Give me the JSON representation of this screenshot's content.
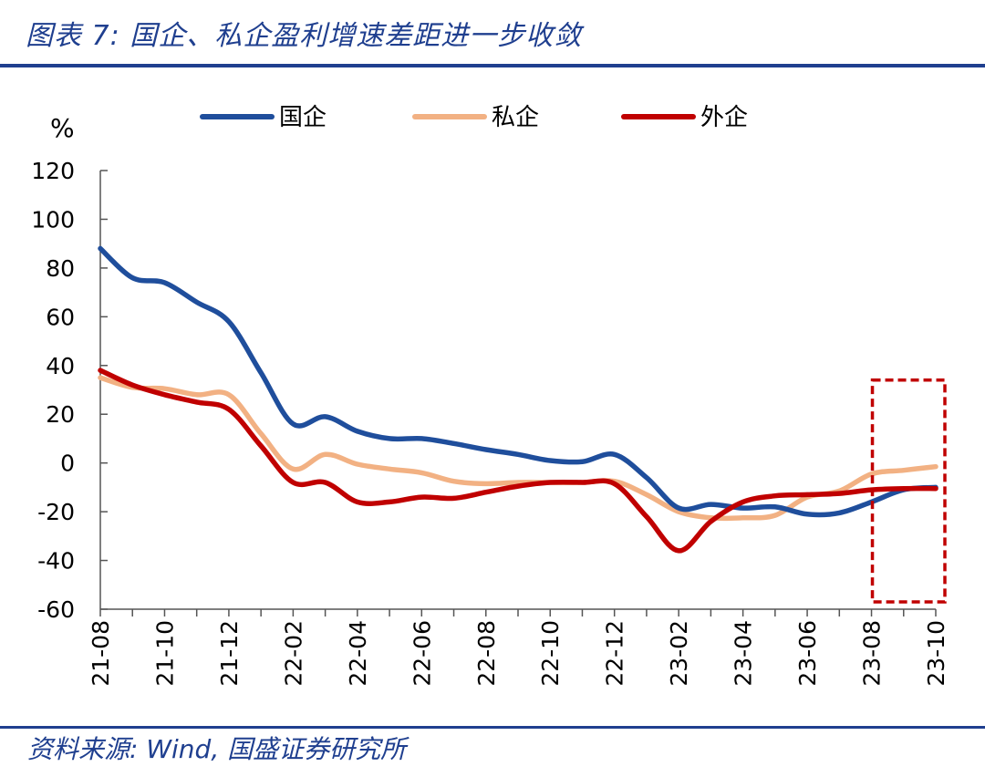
{
  "header": {
    "title": "图表 7: 国企、私企盈利增速差距进一步收敛"
  },
  "footer": {
    "source": "资料来源: Wind, 国盛证券研究所"
  },
  "chart_data": {
    "type": "line",
    "title": "图表 7: 国企、私企盈利增速差距进一步收敛",
    "xlabel": "",
    "ylabel": "%",
    "ylim": [
      -60,
      120
    ],
    "yticks": [
      120,
      100,
      80,
      60,
      40,
      20,
      0,
      -20,
      -40,
      -60
    ],
    "x": [
      "21-08",
      "21-09",
      "21-10",
      "21-11",
      "21-12",
      "22-01",
      "22-02",
      "22-03",
      "22-04",
      "22-05",
      "22-06",
      "22-07",
      "22-08",
      "22-09",
      "22-10",
      "22-11",
      "22-12",
      "23-01",
      "23-02",
      "23-03",
      "23-04",
      "23-05",
      "23-06",
      "23-07",
      "23-08",
      "23-09",
      "23-10"
    ],
    "xtick_labels": [
      "21-08",
      "21-10",
      "21-12",
      "22-02",
      "22-04",
      "22-06",
      "22-08",
      "22-10",
      "22-12",
      "23-02",
      "23-04",
      "23-06",
      "23-08",
      "23-10"
    ],
    "legend_position": "top",
    "grid": false,
    "series": [
      {
        "name": "国企",
        "color": "#1f4e9c",
        "values": [
          88,
          76,
          74,
          66,
          58,
          37,
          16,
          19,
          13,
          10,
          10,
          8,
          5.5,
          3.5,
          1,
          0.5,
          3.5,
          -6,
          -18.5,
          -17,
          -18.5,
          -18,
          -21,
          -20.5,
          -16,
          -11,
          -10
        ]
      },
      {
        "name": "私企",
        "color": "#f2b183",
        "values": [
          35,
          31,
          30.5,
          28,
          28,
          12,
          -2.5,
          3.5,
          -0.5,
          -2.5,
          -4,
          -7.5,
          -8.5,
          -8,
          -8,
          -8,
          -7.5,
          -13,
          -20,
          -22.5,
          -22.5,
          -21.5,
          -14,
          -11.5,
          -4.5,
          -3,
          -1.5
        ]
      },
      {
        "name": "外企",
        "color": "#c00000",
        "values": [
          38,
          32,
          28,
          25,
          22,
          7,
          -8,
          -8,
          -16,
          -16,
          -14,
          -14.5,
          -12,
          -9.5,
          -8,
          -8,
          -8.5,
          -22,
          -36,
          -24,
          -16,
          -13.5,
          -13,
          -12.5,
          -11,
          -10.5,
          -10.5
        ]
      }
    ],
    "annotations": [
      {
        "type": "dashed-box",
        "color": "#c00000",
        "x_from": "23-08",
        "x_to": "23-10",
        "y_from": -57,
        "y_to": 34
      }
    ]
  }
}
